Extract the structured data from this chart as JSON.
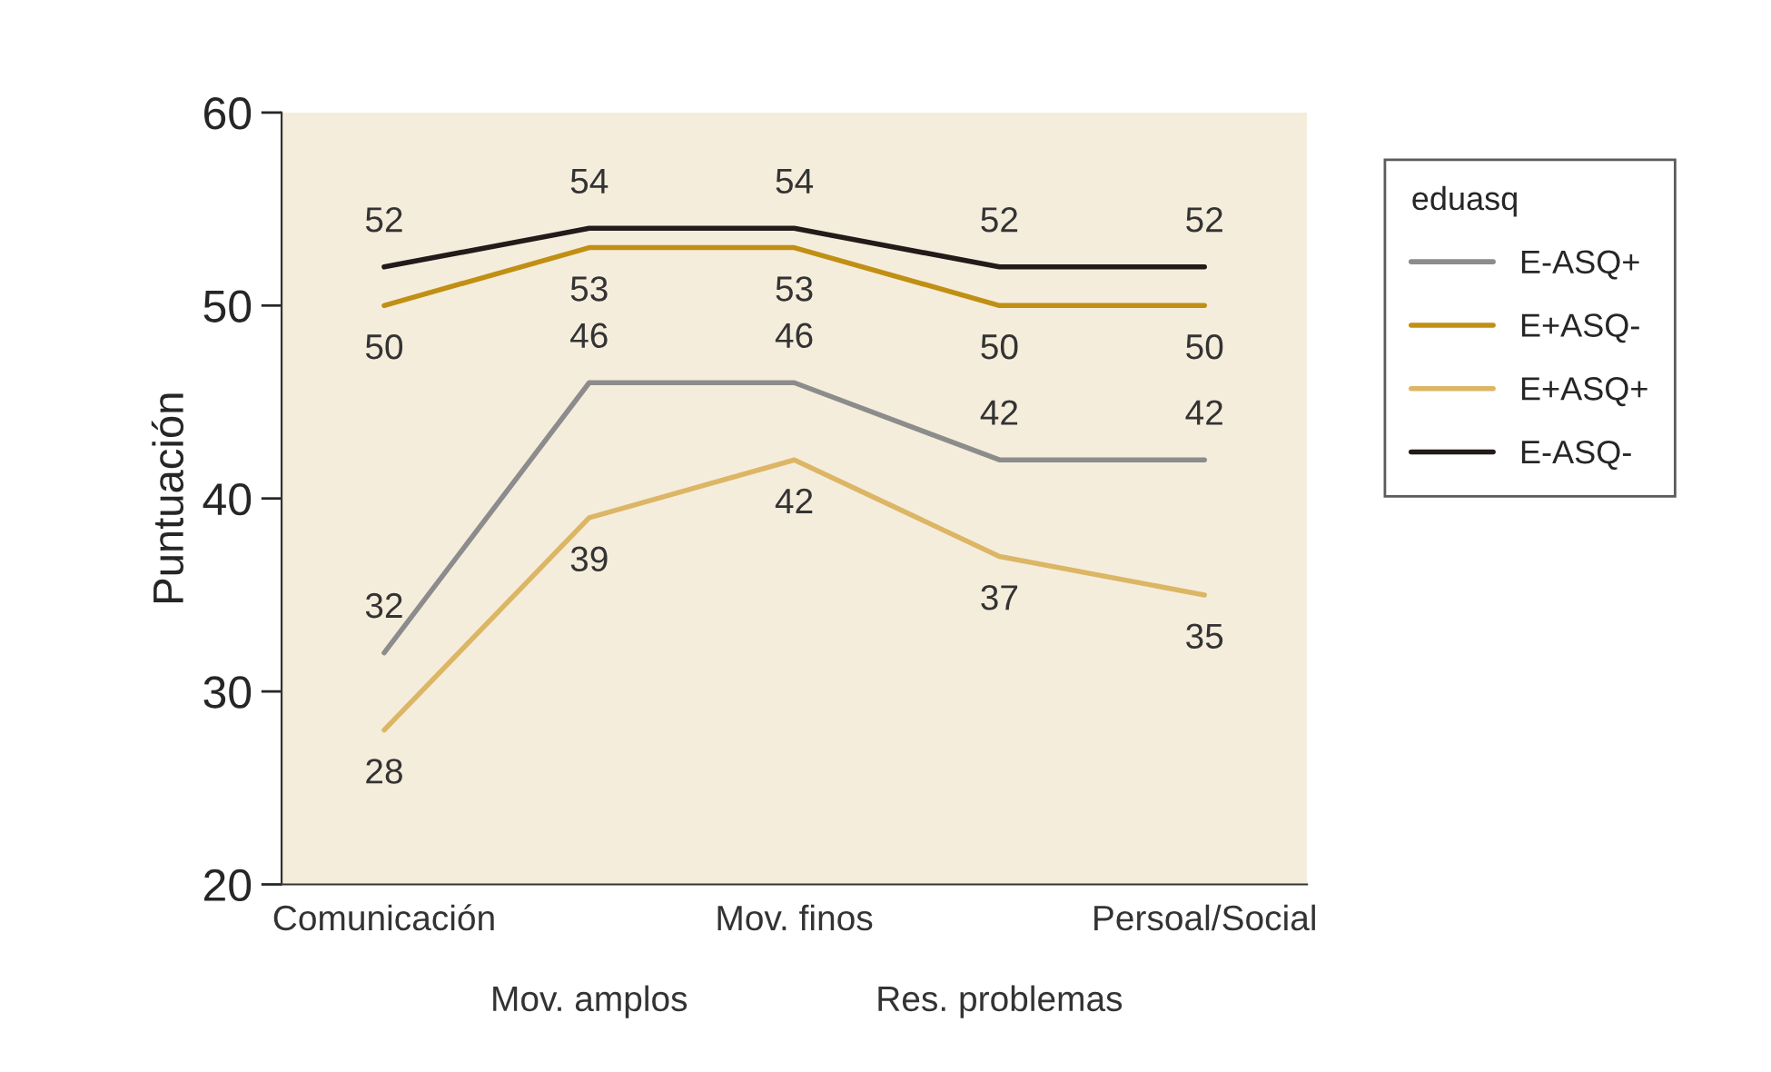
{
  "chart_data": {
    "type": "line",
    "ylabel": "Puntuación",
    "legend_title": "eduasq",
    "categories": [
      "Comunicación",
      "Mov. amplos",
      "Mov. finos",
      "Res. problemas",
      "Persoal/Social"
    ],
    "series": [
      {
        "name": "E-ASQ+",
        "color": "#8c8c8c",
        "values": [
          32,
          46,
          46,
          42,
          42
        ]
      },
      {
        "name": "E+ASQ-",
        "color": "#c08f14",
        "values": [
          50,
          53,
          53,
          50,
          50
        ]
      },
      {
        "name": "E+ASQ+",
        "color": "#dcb665",
        "values": [
          28,
          39,
          42,
          37,
          35
        ]
      },
      {
        "name": "E-ASQ-",
        "color": "#231a1a",
        "values": [
          52,
          54,
          54,
          52,
          52
        ]
      }
    ],
    "ylim": [
      20,
      60
    ],
    "yticks": [
      20,
      30,
      40,
      50,
      60
    ],
    "grid": false,
    "legend": "right",
    "data_labels": true,
    "marker": "none",
    "line_style": "solid"
  }
}
